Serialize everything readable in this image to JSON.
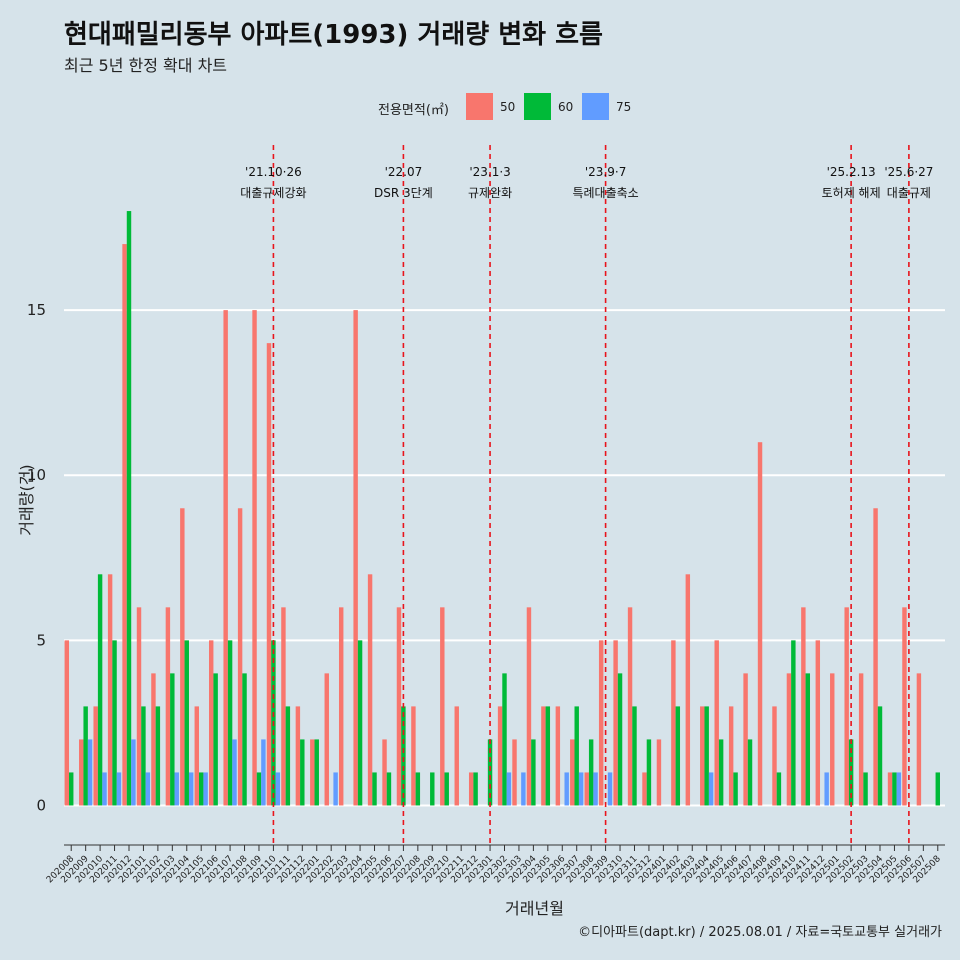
{
  "title": "현대패밀리동부 아파트(1993) 거래량 변화 흐름",
  "subtitle": "최근 5년 한정 확대 차트",
  "caption": "©디아파트(dapt.kr) / 2025.08.01 / 자료=국토교통부 실거래가",
  "legend": {
    "title": "전용면적(㎡)",
    "items": [
      {
        "label": "50",
        "color": "#f8766d"
      },
      {
        "label": "60",
        "color": "#00ba38"
      },
      {
        "label": "75",
        "color": "#619cff"
      }
    ]
  },
  "chart_data": {
    "type": "bar",
    "xlabel": "거래년월",
    "ylabel": "거래량(건)",
    "ylim": [
      -1.5,
      20
    ],
    "yticks": [
      0,
      5,
      10,
      15
    ],
    "grid": true,
    "legend_position": "top",
    "categories": [
      "202008",
      "202009",
      "202010",
      "202011",
      "202012",
      "202101",
      "202102",
      "202103",
      "202104",
      "202105",
      "202106",
      "202107",
      "202108",
      "202109",
      "202110",
      "202111",
      "202112",
      "202201",
      "202202",
      "202203",
      "202204",
      "202205",
      "202206",
      "202207",
      "202208",
      "202209",
      "202210",
      "202211",
      "202212",
      "202301",
      "202302",
      "202303",
      "202304",
      "202305",
      "202306",
      "202307",
      "202308",
      "202309",
      "202310",
      "202311",
      "202312",
      "202401",
      "202402",
      "202403",
      "202404",
      "202405",
      "202406",
      "202407",
      "202408",
      "202409",
      "202410",
      "202411",
      "202412",
      "202501",
      "202502",
      "202503",
      "202504",
      "202505",
      "202506",
      "202507",
      "202508"
    ],
    "series": [
      {
        "name": "50",
        "color": "#f8766d",
        "values": [
          5,
          2,
          3,
          7,
          17,
          6,
          4,
          6,
          9,
          3,
          5,
          15,
          9,
          15,
          14,
          6,
          3,
          2,
          4,
          6,
          15,
          7,
          2,
          6,
          3,
          0,
          6,
          3,
          1,
          0,
          3,
          2,
          6,
          3,
          3,
          2,
          1,
          5,
          5,
          6,
          1,
          2,
          5,
          7,
          3,
          5,
          3,
          4,
          11,
          3,
          4,
          6,
          5,
          4,
          6,
          4,
          9,
          1,
          6,
          4,
          0
        ]
      },
      {
        "name": "60",
        "color": "#00ba38",
        "values": [
          1,
          3,
          7,
          5,
          18,
          3,
          3,
          4,
          5,
          1,
          4,
          5,
          4,
          1,
          5,
          3,
          2,
          2,
          0,
          0,
          5,
          1,
          1,
          3,
          1,
          1,
          1,
          0,
          1,
          2,
          4,
          0,
          2,
          3,
          0,
          3,
          2,
          0,
          4,
          3,
          2,
          0,
          3,
          0,
          3,
          2,
          1,
          2,
          0,
          1,
          5,
          4,
          0,
          0,
          2,
          1,
          3,
          1,
          0,
          0,
          1
        ]
      },
      {
        "name": "75",
        "color": "#619cff",
        "values": [
          0,
          2,
          1,
          1,
          2,
          1,
          0,
          1,
          1,
          1,
          0,
          2,
          0,
          2,
          1,
          0,
          0,
          0,
          1,
          0,
          0,
          0,
          0,
          0,
          0,
          0,
          0,
          0,
          0,
          0,
          1,
          1,
          0,
          0,
          1,
          1,
          1,
          1,
          0,
          0,
          0,
          0,
          0,
          0,
          1,
          0,
          0,
          0,
          0,
          0,
          0,
          0,
          1,
          0,
          0,
          0,
          0,
          1,
          0,
          0,
          0
        ]
      }
    ],
    "annotations": [
      {
        "x": "202110",
        "date": "'21.10·26",
        "text": "대출규제강화"
      },
      {
        "x": "202207",
        "date": "'22.07",
        "text": "DSR 3단계"
      },
      {
        "x": "202301",
        "date": "'23.1·3",
        "text": "규제완화"
      },
      {
        "x": "202309",
        "date": "'23.9·7",
        "text": "특례대출축소"
      },
      {
        "x": "202502",
        "date": "'25.2.13",
        "text": "토허제 해제"
      },
      {
        "x": "202506",
        "date": "'25.6·27",
        "text": "대출규제"
      }
    ]
  }
}
